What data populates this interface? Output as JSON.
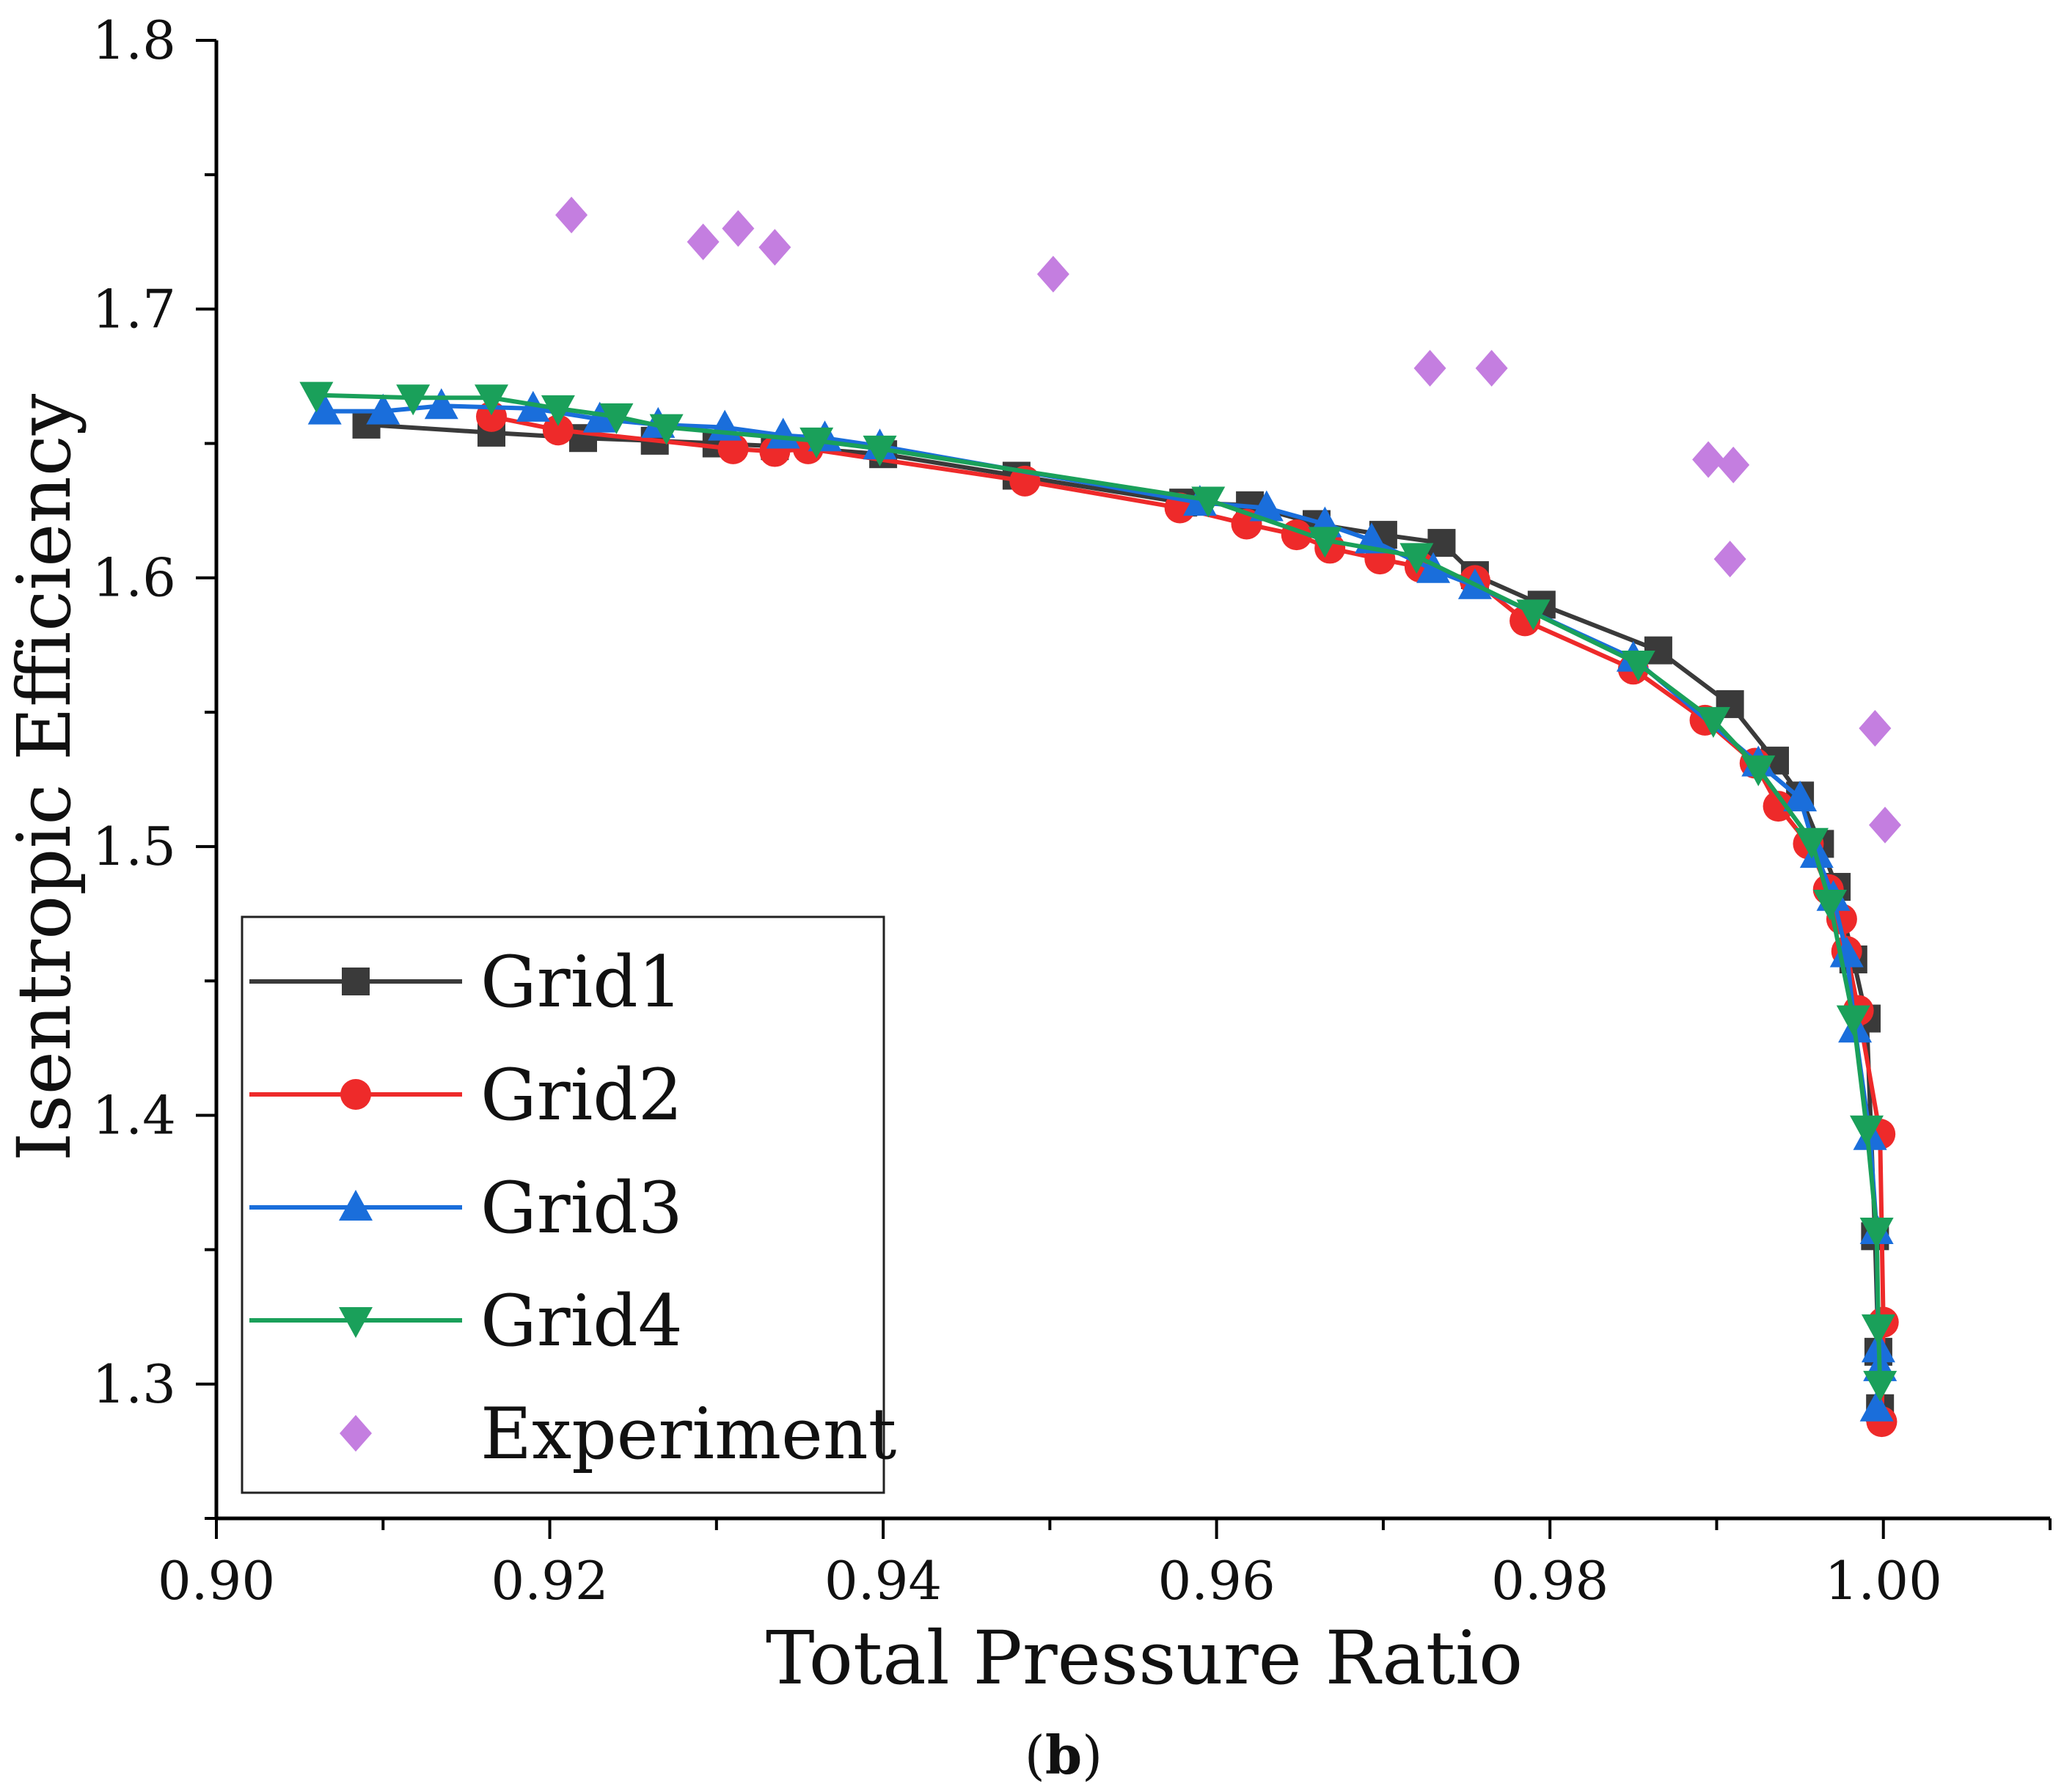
{
  "caption": {
    "open": "(",
    "letter": "b",
    "close": ")"
  },
  "chart_data": {
    "type": "line",
    "xlabel": "Total Pressure Ratio",
    "ylabel": "Isentropic Efficiency",
    "xlim": [
      0.9,
      1.01
    ],
    "ylim": [
      1.25,
      1.8
    ],
    "x_ticks": [
      0.9,
      0.92,
      0.94,
      0.96,
      0.98,
      1.0
    ],
    "x_tick_labels": [
      "0.90",
      "0.92",
      "0.94",
      "0.96",
      "0.98",
      "1.00"
    ],
    "y_ticks": [
      1.3,
      1.4,
      1.5,
      1.6,
      1.7,
      1.8
    ],
    "y_tick_labels": [
      "1.3",
      "1.4",
      "1.5",
      "1.6",
      "1.7",
      "1.8"
    ],
    "grid": false,
    "legend_position": "bottom-left",
    "series": [
      {
        "name": "Grid1",
        "color": "#3a3a3a",
        "marker": "square",
        "line": true,
        "x": [
          0.909,
          0.9165,
          0.922,
          0.9263,
          0.93,
          0.9335,
          0.94,
          0.948,
          0.958,
          0.962,
          0.966,
          0.97,
          0.9735,
          0.9755,
          0.9795,
          0.9865,
          0.9908,
          0.9935,
          0.995,
          0.9962,
          0.9972,
          0.9982,
          0.999,
          0.9995,
          0.9997,
          0.9998
        ],
        "y": [
          1.657,
          1.654,
          1.652,
          1.651,
          1.65,
          1.649,
          1.646,
          1.638,
          1.628,
          1.627,
          1.62,
          1.616,
          1.613,
          1.601,
          1.59,
          1.573,
          1.553,
          1.532,
          1.519,
          1.501,
          1.485,
          1.458,
          1.436,
          1.355,
          1.312,
          1.291
        ]
      },
      {
        "name": "Grid2",
        "color": "#ee2a2a",
        "marker": "circle",
        "line": true,
        "x": [
          0.9165,
          0.9205,
          0.931,
          0.9335,
          0.9355,
          0.9485,
          0.9578,
          0.9618,
          0.9648,
          0.9668,
          0.9698,
          0.9722,
          0.9755,
          0.9785,
          0.985,
          0.9893,
          0.9923,
          0.9937,
          0.9955,
          0.9967,
          0.9975,
          0.9978,
          0.9985,
          0.9998,
          1.0,
          0.9999
        ],
        "y": [
          1.66,
          1.655,
          1.648,
          1.647,
          1.648,
          1.636,
          1.626,
          1.62,
          1.616,
          1.611,
          1.607,
          1.604,
          1.599,
          1.584,
          1.566,
          1.547,
          1.531,
          1.515,
          1.501,
          1.484,
          1.473,
          1.461,
          1.439,
          1.393,
          1.323,
          1.286
        ]
      },
      {
        "name": "Grid3",
        "color": "#1a6edb",
        "marker": "triangle-up",
        "line": true,
        "x": [
          0.9065,
          0.91,
          0.9135,
          0.919,
          0.923,
          0.9265,
          0.9305,
          0.934,
          0.9365,
          0.9398,
          0.959,
          0.963,
          0.9665,
          0.9693,
          0.973,
          0.9755,
          0.985,
          0.9925,
          0.995,
          0.996,
          0.997,
          0.9978,
          0.9983,
          0.9992,
          0.9996,
          0.9997,
          0.9998,
          0.9996
        ],
        "y": [
          1.662,
          1.662,
          1.664,
          1.663,
          1.659,
          1.657,
          1.656,
          1.653,
          1.652,
          1.649,
          1.628,
          1.626,
          1.62,
          1.614,
          1.603,
          1.597,
          1.57,
          1.531,
          1.518,
          1.497,
          1.481,
          1.46,
          1.432,
          1.392,
          1.357,
          1.313,
          1.306,
          1.291
        ]
      },
      {
        "name": "Grid4",
        "color": "#1aa05a",
        "marker": "triangle-down",
        "line": true,
        "x": [
          0.906,
          0.9118,
          0.9165,
          0.9205,
          0.924,
          0.927,
          0.936,
          0.9398,
          0.9595,
          0.9665,
          0.972,
          0.979,
          0.9853,
          0.9898,
          0.9925,
          0.9957,
          0.9968,
          0.9982,
          0.999,
          0.9996,
          0.9997,
          0.9998
        ],
        "y": [
          1.668,
          1.667,
          1.667,
          1.663,
          1.66,
          1.656,
          1.651,
          1.648,
          1.629,
          1.614,
          1.608,
          1.587,
          1.568,
          1.547,
          1.529,
          1.502,
          1.479,
          1.436,
          1.395,
          1.357,
          1.321,
          1.3
        ]
      },
      {
        "name": "Experiment",
        "color": "#c47ee0",
        "marker": "diamond",
        "line": false,
        "x": [
          0.9213,
          0.9292,
          0.9313,
          0.9335,
          0.9502,
          0.9728,
          0.9765,
          0.9895,
          0.991,
          0.9908,
          0.9995,
          1.0001
        ],
        "y": [
          1.735,
          1.725,
          1.73,
          1.723,
          1.713,
          1.678,
          1.678,
          1.644,
          1.642,
          1.607,
          1.544,
          1.508
        ]
      }
    ]
  }
}
